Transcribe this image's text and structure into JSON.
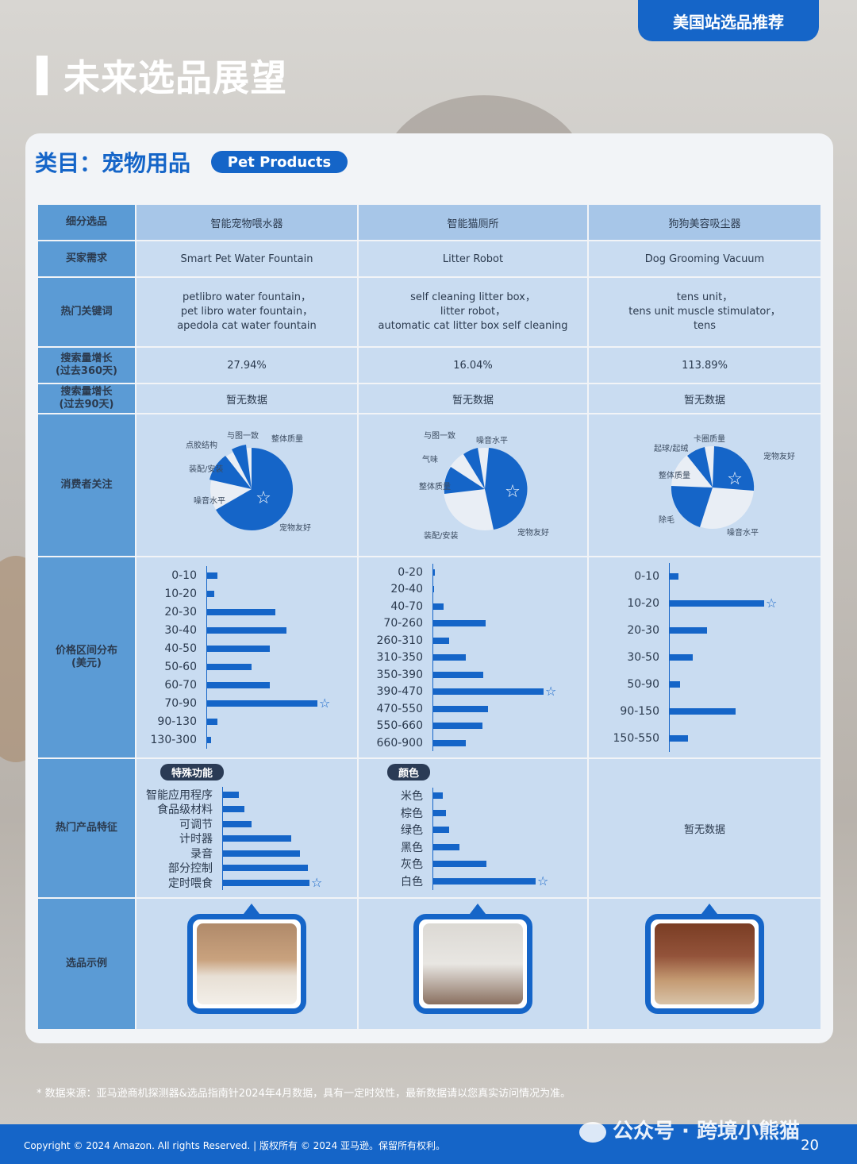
{
  "header": {
    "badge": "美国站选品推荐",
    "title": "未来选品展望"
  },
  "category": {
    "title": "类目：宠物用品",
    "pill": "Pet Products"
  },
  "row_labels": {
    "subcategory": "细分选品",
    "buyer_need": "买家需求",
    "keywords": "热门关键词",
    "growth360": "搜索量增长\n(过去360天)",
    "growth90": "搜索量增长\n(过去90天)",
    "consumer_focus": "消费者关注",
    "price_dist": "价格区间分布\n(美元)",
    "features": "热门产品特征",
    "examples": "选品示例"
  },
  "columns": [
    {
      "subcategory": "智能宠物喂水器",
      "buyer_need": "Smart Pet Water Fountain",
      "keywords": [
        "petlibro water fountain，",
        "pet libro water fountain，",
        "apedola cat water fountain"
      ],
      "growth360": "27.94%",
      "growth90": "暂无数据",
      "pie_labels": [
        "与图一致",
        "整体质量",
        "点胶结构",
        "装配/安装",
        "噪音水平",
        "宠物友好"
      ],
      "price_labels": [
        "0-10",
        "10-20",
        "20-30",
        "30-40",
        "40-50",
        "50-60",
        "60-70",
        "70-90",
        "90-130",
        "130-300"
      ],
      "price_values": [
        10,
        7,
        62,
        72,
        57,
        41,
        57,
        100,
        10,
        4
      ],
      "features_tag": "特殊功能",
      "features_labels": [
        "智能应用程序",
        "食品级材料",
        "可调节",
        "计时器",
        "录音",
        "部分控制",
        "定时喂食"
      ],
      "features_values": [
        18,
        24,
        32,
        74,
        84,
        92,
        94
      ]
    },
    {
      "subcategory": "智能猫厕所",
      "buyer_need": "Litter Robot",
      "keywords": [
        "self cleaning litter box，",
        "litter robot，",
        "automatic cat litter box self cleaning"
      ],
      "growth360": "16.04%",
      "growth90": "暂无数据",
      "pie_labels": [
        "与图一致",
        "噪音水平",
        "气味",
        "整体质量",
        "装配/安装",
        "宠物友好"
      ],
      "price_labels": [
        "0-20",
        "20-40",
        "40-70",
        "70-260",
        "260-310",
        "310-350",
        "350-390",
        "390-470",
        "470-550",
        "550-660",
        "660-900"
      ],
      "price_values": [
        2,
        1,
        10,
        48,
        15,
        30,
        46,
        100,
        50,
        45,
        30
      ],
      "features_tag": "颜色",
      "features_labels": [
        "米色",
        "棕色",
        "绿色",
        "黑色",
        "灰色",
        "白色"
      ],
      "features_values": [
        10,
        13,
        16,
        26,
        52,
        100
      ]
    },
    {
      "subcategory": "狗狗美容吸尘器",
      "buyer_need": "Dog Grooming Vacuum",
      "keywords": [
        "tens unit，",
        "tens unit muscle stimulator，",
        "tens"
      ],
      "growth360": "113.89%",
      "growth90": "暂无数据",
      "pie_labels": [
        "卡圈质量",
        "起球/起绒",
        "宠物友好",
        "整体质量",
        "除毛",
        "噪音水平"
      ],
      "price_labels": [
        "0-10",
        "10-20",
        "20-30",
        "30-50",
        "50-90",
        "90-150",
        "150-550"
      ],
      "price_values": [
        10,
        100,
        40,
        25,
        12,
        70,
        20
      ],
      "features_tag": "",
      "features_nodata": "暂无数据"
    }
  ],
  "source": "* 数据来源：亚马逊商机探测器&选品指南针2024年4月数据，具有一定时效性，最新数据请以您真实访问情况为准。",
  "copyright": "Copyright © 2024 Amazon. All rights Reserved. | 版权所有 © 2024 亚马逊。保留所有权利。",
  "watermark": "公众号 · 跨境小熊猫",
  "page_number": "20",
  "colors": {
    "primary": "#1565c8",
    "label_cell": "#5b9bd5",
    "data_cell": "#c9dcf1"
  }
}
